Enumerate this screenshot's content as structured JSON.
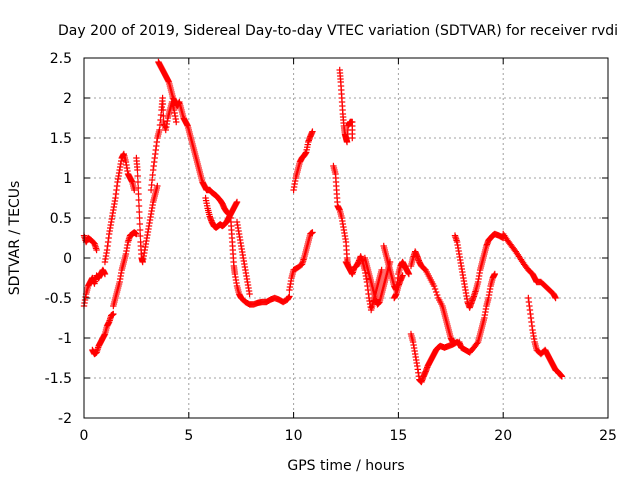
{
  "chart_data": {
    "type": "scatter",
    "title": "Day 200 of 2019, Sidereal Day-to-day VTEC variation (SDTVAR) for receiver rvdi",
    "xlabel": "GPS time / hours",
    "ylabel": "SDTVAR / TECUs",
    "xlim": [
      0,
      25
    ],
    "ylim": [
      -2,
      2.5
    ],
    "xticks": [
      "0",
      "5",
      "10",
      "15",
      "20",
      "25"
    ],
    "yticks": [
      "-2",
      "-1.5",
      "-1",
      "-0.5",
      "0",
      "0.5",
      "1",
      "1.5",
      "2",
      "2.5"
    ],
    "grid": true,
    "marker": "plus",
    "color": "#ff0000",
    "series_segments": [
      [
        [
          0.0,
          0.28
        ],
        [
          0.1,
          0.2
        ],
        [
          0.2,
          0.25
        ],
        [
          0.35,
          0.22
        ],
        [
          0.5,
          0.18
        ],
        [
          0.6,
          0.1
        ]
      ],
      [
        [
          0.0,
          -0.6
        ],
        [
          0.1,
          -0.45
        ],
        [
          0.2,
          -0.35
        ],
        [
          0.3,
          -0.3
        ],
        [
          0.4,
          -0.25
        ],
        [
          0.5,
          -0.32
        ],
        [
          0.6,
          -0.22
        ],
        [
          0.7,
          -0.25
        ],
        [
          0.8,
          -0.2
        ],
        [
          0.9,
          -0.15
        ],
        [
          1.0,
          -0.2
        ]
      ],
      [
        [
          0.4,
          -1.15
        ],
        [
          0.5,
          -1.2
        ],
        [
          0.6,
          -1.18
        ],
        [
          0.7,
          -1.1
        ],
        [
          0.8,
          -1.05
        ],
        [
          0.9,
          -1.0
        ],
        [
          1.0,
          -0.95
        ],
        [
          1.1,
          -0.85
        ],
        [
          1.2,
          -0.8
        ],
        [
          1.3,
          -0.72
        ],
        [
          1.4,
          -0.7
        ]
      ],
      [
        [
          1.0,
          -0.05
        ],
        [
          1.1,
          0.1
        ],
        [
          1.2,
          0.3
        ],
        [
          1.3,
          0.45
        ],
        [
          1.4,
          0.6
        ],
        [
          1.5,
          0.75
        ],
        [
          1.6,
          0.95
        ],
        [
          1.7,
          1.1
        ],
        [
          1.8,
          1.25
        ],
        [
          1.9,
          1.3
        ],
        [
          2.0,
          1.2
        ],
        [
          2.1,
          1.05
        ],
        [
          2.2,
          1.0
        ],
        [
          2.3,
          0.95
        ],
        [
          2.4,
          0.85
        ]
      ],
      [
        [
          1.4,
          -0.6
        ],
        [
          1.5,
          -0.5
        ],
        [
          1.6,
          -0.4
        ],
        [
          1.7,
          -0.3
        ],
        [
          1.8,
          -0.15
        ],
        [
          1.9,
          -0.05
        ],
        [
          2.0,
          0.05
        ],
        [
          2.1,
          0.2
        ],
        [
          2.2,
          0.28
        ],
        [
          2.3,
          0.3
        ],
        [
          2.4,
          0.32
        ],
        [
          2.5,
          0.3
        ]
      ],
      [
        [
          2.5,
          1.25
        ],
        [
          2.55,
          1.1
        ],
        [
          2.6,
          0.8
        ],
        [
          2.65,
          0.5
        ],
        [
          2.7,
          0.2
        ],
        [
          2.75,
          0.0
        ],
        [
          2.8,
          -0.05
        ],
        [
          2.9,
          0.1
        ],
        [
          3.0,
          0.25
        ],
        [
          3.1,
          0.4
        ],
        [
          3.2,
          0.55
        ],
        [
          3.3,
          0.7
        ],
        [
          3.4,
          0.8
        ],
        [
          3.5,
          0.9
        ]
      ],
      [
        [
          3.2,
          0.85
        ],
        [
          3.3,
          1.1
        ],
        [
          3.4,
          1.3
        ],
        [
          3.5,
          1.5
        ],
        [
          3.6,
          1.6
        ],
        [
          3.7,
          1.85
        ],
        [
          3.75,
          2.0
        ],
        [
          3.8,
          1.7
        ],
        [
          3.9,
          1.6
        ],
        [
          4.0,
          1.75
        ],
        [
          4.1,
          1.85
        ],
        [
          4.2,
          1.95
        ],
        [
          4.3,
          1.85
        ],
        [
          4.4,
          1.7
        ]
      ],
      [
        [
          3.55,
          2.45
        ],
        [
          3.65,
          2.4
        ],
        [
          3.75,
          2.35
        ],
        [
          3.85,
          2.3
        ],
        [
          3.95,
          2.25
        ],
        [
          4.05,
          2.2
        ],
        [
          4.15,
          2.1
        ],
        [
          4.25,
          2.0
        ],
        [
          4.35,
          1.95
        ],
        [
          4.45,
          1.9
        ],
        [
          4.55,
          1.95
        ],
        [
          4.65,
          1.85
        ],
        [
          4.75,
          1.75
        ],
        [
          4.85,
          1.7
        ],
        [
          4.95,
          1.65
        ],
        [
          5.05,
          1.55
        ],
        [
          5.15,
          1.45
        ],
        [
          5.25,
          1.35
        ],
        [
          5.35,
          1.25
        ],
        [
          5.45,
          1.15
        ],
        [
          5.55,
          1.05
        ],
        [
          5.65,
          0.95
        ],
        [
          5.75,
          0.9
        ],
        [
          5.85,
          0.85
        ],
        [
          6.0,
          0.85
        ],
        [
          6.1,
          0.82
        ],
        [
          6.2,
          0.8
        ],
        [
          6.3,
          0.78
        ],
        [
          6.4,
          0.75
        ],
        [
          6.5,
          0.72
        ],
        [
          6.6,
          0.68
        ],
        [
          6.7,
          0.62
        ],
        [
          6.8,
          0.58
        ],
        [
          6.9,
          0.55
        ]
      ],
      [
        [
          5.8,
          0.75
        ],
        [
          5.9,
          0.62
        ],
        [
          6.0,
          0.52
        ],
        [
          6.1,
          0.45
        ],
        [
          6.2,
          0.4
        ],
        [
          6.3,
          0.38
        ],
        [
          6.4,
          0.4
        ],
        [
          6.5,
          0.42
        ],
        [
          6.6,
          0.4
        ],
        [
          6.7,
          0.42
        ],
        [
          6.8,
          0.45
        ],
        [
          6.9,
          0.5
        ],
        [
          7.0,
          0.55
        ],
        [
          7.1,
          0.6
        ],
        [
          7.2,
          0.65
        ],
        [
          7.3,
          0.7
        ]
      ],
      [
        [
          7.0,
          0.5
        ],
        [
          7.05,
          0.3
        ],
        [
          7.1,
          0.1
        ],
        [
          7.15,
          -0.1
        ],
        [
          7.2,
          -0.2
        ],
        [
          7.3,
          -0.35
        ],
        [
          7.4,
          -0.45
        ],
        [
          7.5,
          -0.5
        ],
        [
          7.7,
          -0.55
        ],
        [
          7.9,
          -0.58
        ],
        [
          8.1,
          -0.58
        ],
        [
          8.3,
          -0.56
        ],
        [
          8.5,
          -0.55
        ],
        [
          8.7,
          -0.55
        ],
        [
          8.9,
          -0.52
        ],
        [
          9.1,
          -0.5
        ],
        [
          9.3,
          -0.52
        ],
        [
          9.5,
          -0.55
        ],
        [
          9.7,
          -0.52
        ],
        [
          9.8,
          -0.48
        ]
      ],
      [
        [
          7.3,
          0.45
        ],
        [
          7.4,
          0.3
        ],
        [
          7.5,
          0.15
        ],
        [
          7.6,
          0.0
        ],
        [
          7.7,
          -0.15
        ],
        [
          7.8,
          -0.3
        ],
        [
          7.9,
          -0.45
        ]
      ],
      [
        [
          9.8,
          -0.4
        ],
        [
          9.9,
          -0.25
        ],
        [
          10.0,
          -0.15
        ],
        [
          10.2,
          -0.12
        ],
        [
          10.4,
          -0.08
        ],
        [
          10.5,
          0.0
        ],
        [
          10.6,
          0.1
        ],
        [
          10.7,
          0.2
        ],
        [
          10.8,
          0.3
        ],
        [
          10.9,
          0.32
        ]
      ],
      [
        [
          10.0,
          0.85
        ],
        [
          10.1,
          1.0
        ],
        [
          10.2,
          1.1
        ],
        [
          10.3,
          1.2
        ],
        [
          10.4,
          1.25
        ],
        [
          10.5,
          1.28
        ],
        [
          10.6,
          1.32
        ],
        [
          10.7,
          1.45
        ],
        [
          10.8,
          1.52
        ],
        [
          10.9,
          1.58
        ]
      ],
      [
        [
          11.9,
          1.15
        ],
        [
          12.0,
          1.05
        ],
        [
          12.05,
          0.85
        ],
        [
          12.1,
          0.65
        ],
        [
          12.2,
          0.6
        ],
        [
          12.3,
          0.5
        ],
        [
          12.4,
          0.35
        ],
        [
          12.5,
          0.2
        ],
        [
          12.55,
          0.0
        ],
        [
          12.6,
          -0.1
        ],
        [
          12.7,
          -0.15
        ]
      ],
      [
        [
          12.2,
          2.35
        ],
        [
          12.25,
          2.2
        ],
        [
          12.3,
          2.0
        ],
        [
          12.35,
          1.8
        ],
        [
          12.4,
          1.65
        ],
        [
          12.45,
          1.55
        ],
        [
          12.5,
          1.5
        ],
        [
          12.55,
          1.45
        ],
        [
          12.6,
          1.65
        ],
        [
          12.7,
          1.7
        ],
        [
          12.8,
          1.7
        ],
        [
          12.8,
          1.5
        ]
      ],
      [
        [
          12.5,
          -0.05
        ],
        [
          12.6,
          -0.1
        ],
        [
          12.7,
          -0.15
        ],
        [
          12.8,
          -0.2
        ],
        [
          12.9,
          -0.12
        ],
        [
          13.0,
          -0.1
        ],
        [
          13.1,
          -0.05
        ],
        [
          13.2,
          0.02
        ],
        [
          13.3,
          -0.05
        ],
        [
          13.4,
          -0.15
        ],
        [
          13.5,
          -0.3
        ],
        [
          13.6,
          -0.5
        ],
        [
          13.7,
          -0.65
        ],
        [
          13.8,
          -0.55
        ],
        [
          13.9,
          -0.45
        ],
        [
          14.0,
          -0.35
        ],
        [
          14.1,
          -0.25
        ],
        [
          14.2,
          -0.15
        ]
      ],
      [
        [
          13.4,
          0.0
        ],
        [
          13.5,
          -0.1
        ],
        [
          13.6,
          -0.2
        ],
        [
          13.7,
          -0.3
        ],
        [
          13.8,
          -0.4
        ],
        [
          13.9,
          -0.5
        ],
        [
          14.0,
          -0.58
        ],
        [
          14.1,
          -0.55
        ],
        [
          14.2,
          -0.45
        ],
        [
          14.3,
          -0.35
        ],
        [
          14.4,
          -0.25
        ],
        [
          14.5,
          -0.15
        ],
        [
          14.6,
          -0.05
        ]
      ],
      [
        [
          14.3,
          0.15
        ],
        [
          14.4,
          0.05
        ],
        [
          14.5,
          -0.05
        ],
        [
          14.6,
          -0.15
        ],
        [
          14.7,
          -0.25
        ],
        [
          14.8,
          -0.35
        ],
        [
          14.9,
          -0.4
        ],
        [
          15.0,
          -0.2
        ],
        [
          15.1,
          -0.1
        ],
        [
          15.2,
          -0.05
        ],
        [
          15.3,
          -0.1
        ],
        [
          15.4,
          -0.15
        ],
        [
          15.5,
          -0.2
        ]
      ],
      [
        [
          14.8,
          -0.5
        ],
        [
          14.9,
          -0.45
        ],
        [
          15.0,
          -0.35
        ],
        [
          15.1,
          -0.28
        ],
        [
          15.2,
          -0.22
        ]
      ],
      [
        [
          15.6,
          -0.1
        ],
        [
          15.7,
          0.0
        ],
        [
          15.8,
          0.08
        ],
        [
          15.9,
          0.02
        ],
        [
          16.0,
          -0.05
        ],
        [
          16.1,
          -0.1
        ],
        [
          16.3,
          -0.15
        ],
        [
          16.5,
          -0.25
        ],
        [
          16.7,
          -0.35
        ],
        [
          16.9,
          -0.5
        ],
        [
          17.1,
          -0.6
        ],
        [
          17.2,
          -0.7
        ],
        [
          17.3,
          -0.8
        ],
        [
          17.4,
          -0.9
        ],
        [
          17.5,
          -1.0
        ],
        [
          17.6,
          -1.05
        ]
      ],
      [
        [
          15.6,
          -0.95
        ],
        [
          15.7,
          -1.05
        ],
        [
          15.8,
          -1.2
        ],
        [
          15.9,
          -1.35
        ],
        [
          16.0,
          -1.52
        ],
        [
          16.1,
          -1.55
        ],
        [
          16.2,
          -1.48
        ],
        [
          16.3,
          -1.42
        ],
        [
          16.4,
          -1.35
        ],
        [
          16.5,
          -1.3
        ],
        [
          16.6,
          -1.25
        ],
        [
          16.7,
          -1.2
        ],
        [
          16.8,
          -1.15
        ],
        [
          16.9,
          -1.12
        ],
        [
          17.0,
          -1.1
        ],
        [
          17.2,
          -1.12
        ],
        [
          17.4,
          -1.1
        ],
        [
          17.6,
          -1.08
        ],
        [
          17.8,
          -1.05
        ],
        [
          17.9,
          -1.08
        ]
      ],
      [
        [
          17.7,
          0.28
        ],
        [
          17.8,
          0.2
        ],
        [
          17.9,
          0.05
        ],
        [
          18.0,
          -0.1
        ],
        [
          18.1,
          -0.25
        ],
        [
          18.2,
          -0.4
        ],
        [
          18.3,
          -0.55
        ],
        [
          18.4,
          -0.62
        ],
        [
          18.5,
          -0.55
        ],
        [
          18.6,
          -0.48
        ],
        [
          18.7,
          -0.4
        ],
        [
          18.8,
          -0.3
        ],
        [
          18.9,
          -0.15
        ],
        [
          19.0,
          -0.05
        ],
        [
          19.1,
          0.05
        ],
        [
          19.2,
          0.15
        ],
        [
          19.3,
          0.22
        ],
        [
          19.4,
          0.25
        ],
        [
          19.5,
          0.28
        ],
        [
          19.6,
          0.3
        ],
        [
          19.8,
          0.28
        ],
        [
          20.0,
          0.25
        ]
      ],
      [
        [
          17.9,
          -1.05
        ],
        [
          18.0,
          -1.12
        ],
        [
          18.2,
          -1.15
        ],
        [
          18.4,
          -1.18
        ],
        [
          18.6,
          -1.12
        ],
        [
          18.8,
          -1.05
        ],
        [
          18.9,
          -0.95
        ],
        [
          19.0,
          -0.85
        ],
        [
          19.1,
          -0.75
        ],
        [
          19.2,
          -0.6
        ],
        [
          19.3,
          -0.5
        ],
        [
          19.4,
          -0.35
        ],
        [
          19.5,
          -0.25
        ],
        [
          19.6,
          -0.2
        ]
      ],
      [
        [
          20.0,
          0.3
        ],
        [
          20.2,
          0.22
        ],
        [
          20.4,
          0.15
        ],
        [
          20.6,
          0.08
        ],
        [
          20.8,
          0.0
        ],
        [
          21.0,
          -0.08
        ],
        [
          21.2,
          -0.15
        ],
        [
          21.4,
          -0.2
        ],
        [
          21.5,
          -0.25
        ],
        [
          21.6,
          -0.3
        ],
        [
          21.8,
          -0.3
        ],
        [
          22.0,
          -0.35
        ],
        [
          22.2,
          -0.4
        ],
        [
          22.4,
          -0.45
        ],
        [
          22.5,
          -0.5
        ]
      ],
      [
        [
          21.2,
          -0.5
        ],
        [
          21.3,
          -0.7
        ],
        [
          21.4,
          -0.9
        ],
        [
          21.5,
          -1.05
        ],
        [
          21.6,
          -1.15
        ],
        [
          21.8,
          -1.2
        ],
        [
          22.0,
          -1.15
        ],
        [
          22.1,
          -1.2
        ],
        [
          22.2,
          -1.25
        ],
        [
          22.3,
          -1.3
        ],
        [
          22.4,
          -1.35
        ],
        [
          22.5,
          -1.4
        ],
        [
          22.6,
          -1.42
        ],
        [
          22.7,
          -1.45
        ],
        [
          22.8,
          -1.48
        ]
      ]
    ]
  }
}
